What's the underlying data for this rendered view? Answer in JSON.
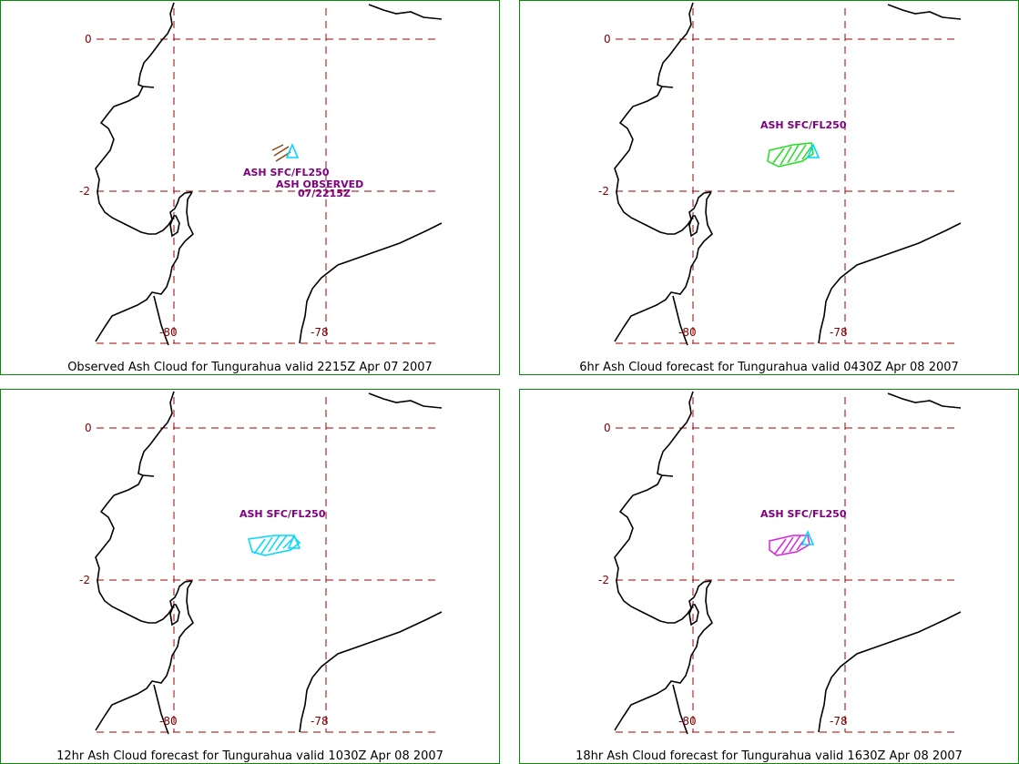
{
  "colors": {
    "border": "#0a8a0a",
    "grid": "#a00000",
    "tick": "#800000",
    "coast": "#000000",
    "label": "#800080",
    "observed_cloud": "#8b4513",
    "forecast_6hr": "#22dd22",
    "forecast_12hr": "#00d8ff",
    "forecast_18hr": "#dd22dd",
    "vent_marker": "#00d8ff"
  },
  "map": {
    "lon_ticks": [
      "-80",
      "-78"
    ],
    "lat_ticks": [
      "0",
      "-2"
    ]
  },
  "panels": [
    {
      "caption": "Observed Ash Cloud for Tungurahua valid 2215Z Apr 07 2007",
      "ash_label": "ASH SFC/FL250",
      "observed_label": "ASH OBSERVED",
      "observed_time": "07/2215Z",
      "cloud_color": "observed_cloud"
    },
    {
      "caption": "6hr Ash Cloud forecast for Tungurahua valid 0430Z Apr 08 2007",
      "ash_label": "ASH SFC/FL250",
      "cloud_color": "forecast_6hr"
    },
    {
      "caption": "12hr Ash Cloud forecast for Tungurahua valid 1030Z Apr 08 2007",
      "ash_label": "ASH SFC/FL250",
      "cloud_color": "forecast_12hr"
    },
    {
      "caption": "18hr Ash Cloud forecast for Tungurahua valid 1630Z Apr 08 2007",
      "ash_label": "ASH SFC/FL250",
      "cloud_color": "forecast_18hr"
    }
  ]
}
